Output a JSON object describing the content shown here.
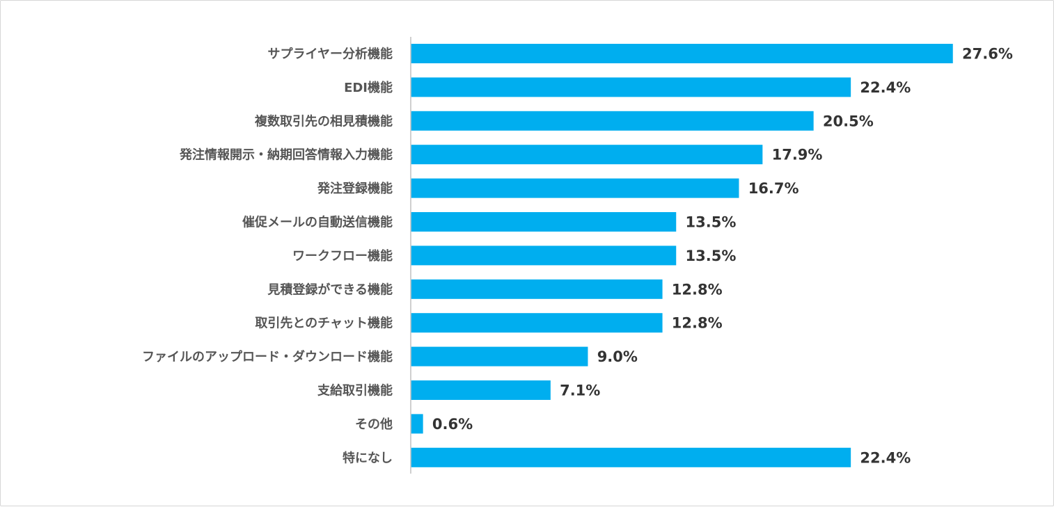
{
  "chart_data": {
    "type": "bar",
    "orientation": "horizontal",
    "title": "",
    "xlabel": "",
    "ylabel": "",
    "categories": [
      "サプライヤー分析機能",
      "EDI機能",
      "複数取引先の相見積機能",
      "発注情報開示・納期回答情報入力機能",
      "発注登録機能",
      "催促メールの自動送信機能",
      "ワークフロー機能",
      "見積登録ができる機能",
      "取引先とのチャット機能",
      "ファイルのアップロード・ダウンロード機能",
      "支給取引機能",
      "その他",
      "特になし"
    ],
    "values": [
      27.6,
      22.4,
      20.5,
      17.9,
      16.7,
      13.5,
      13.5,
      12.8,
      12.8,
      9.0,
      7.1,
      0.6,
      22.4
    ],
    "value_labels": [
      "27.6%",
      "22.4%",
      "20.5%",
      "17.9%",
      "16.7%",
      "13.5%",
      "13.5%",
      "12.8%",
      "12.8%",
      "9.0%",
      "7.1%",
      "0.6%",
      "22.4%"
    ],
    "xlim": [
      0,
      30
    ],
    "grid": false,
    "legend": "none",
    "colors": {
      "bar": "#00AEEF",
      "axis": "#bfbfbf",
      "category_text": "#555555",
      "value_text": "#333333"
    }
  }
}
